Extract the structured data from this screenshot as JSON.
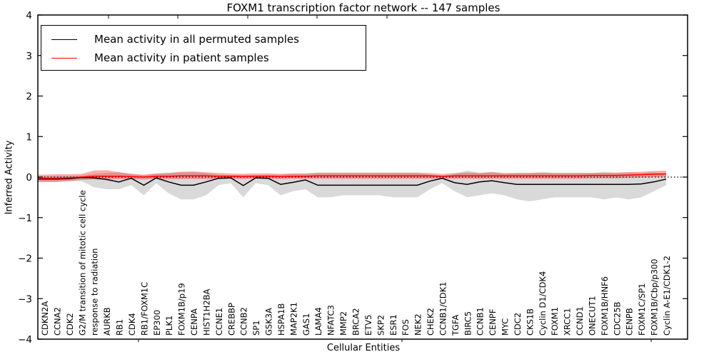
{
  "chart_data": {
    "type": "line",
    "title": "FOXM1 transcription factor network -- 147 samples",
    "xlabel": "Cellular Entities",
    "ylabel": "Inferred Activity",
    "ylim": [
      -4,
      4
    ],
    "yticks": [
      -4,
      -3,
      -2,
      -1,
      0,
      1,
      2,
      3,
      4
    ],
    "grid": "off",
    "zero_line": {
      "value": 0,
      "style": "dotted",
      "color": "#000000"
    },
    "legend": {
      "position": "upper-left",
      "entries": [
        {
          "label": "Mean activity in all permuted samples",
          "color": "#000000"
        },
        {
          "label": "Mean activity in patient samples",
          "color": "#ff0000"
        }
      ]
    },
    "categories": [
      "CDKN2A",
      "CCNA2",
      "CDK2",
      "G2/M transition of mitotic cell cycle",
      "response to radiation",
      "AURKB",
      "RB1",
      "CDK4",
      "RB1/FOXM1C",
      "EP300",
      "PLK1",
      "FOXM1B/p19",
      "CENPA",
      "HIST1H2BA",
      "CCNE1",
      "CREBBP",
      "CCNB2",
      "SP1",
      "GSK3A",
      "HSPA1B",
      "MAP2K1",
      "GAS1",
      "LAMA4",
      "NFATC3",
      "MMP2",
      "BRCA2",
      "ETV5",
      "SKP2",
      "ESR1",
      "FOS",
      "NEK2",
      "CHEK2",
      "CCNB1/CDK1",
      "TGFA",
      "BIRC5",
      "CCNB1",
      "CENPF",
      "MYC",
      "CDC2",
      "CKS1B",
      "Cyclin D1/CDK4",
      "FOXM1",
      "XRCC1",
      "CCND1",
      "ONECUT1",
      "FOXM1B/HNF6",
      "CDC25B",
      "CENPB",
      "FOXM1C/SP1",
      "FOXM1B/Cbp/p300",
      "Cyclin A-E1/CDK1-2"
    ],
    "series": [
      {
        "name": "Mean activity in all permuted samples",
        "color": "#000000",
        "values": [
          -0.05,
          -0.05,
          -0.04,
          -0.01,
          -0.02,
          -0.06,
          -0.12,
          -0.03,
          -0.2,
          -0.02,
          -0.12,
          -0.2,
          -0.2,
          -0.12,
          -0.03,
          -0.02,
          -0.21,
          -0.02,
          -0.03,
          -0.18,
          -0.13,
          -0.07,
          -0.2,
          -0.2,
          -0.2,
          -0.2,
          -0.2,
          -0.2,
          -0.2,
          -0.2,
          -0.2,
          -0.1,
          -0.03,
          -0.14,
          -0.18,
          -0.12,
          -0.09,
          -0.14,
          -0.18,
          -0.18,
          -0.18,
          -0.18,
          -0.18,
          -0.18,
          -0.18,
          -0.18,
          -0.18,
          -0.18,
          -0.17,
          -0.12,
          -0.05
        ]
      },
      {
        "name": "Mean activity in patient samples",
        "color": "#ff0000",
        "values": [
          -0.03,
          -0.03,
          -0.02,
          0.0,
          0.02,
          0.02,
          0.02,
          0.01,
          0.0,
          0.02,
          0.02,
          0.03,
          0.03,
          0.03,
          0.02,
          0.02,
          0.01,
          0.02,
          0.02,
          0.01,
          0.02,
          0.02,
          0.03,
          0.03,
          0.03,
          0.03,
          0.03,
          0.03,
          0.03,
          0.03,
          0.03,
          0.03,
          0.02,
          0.03,
          0.03,
          0.03,
          0.03,
          0.03,
          0.03,
          0.03,
          0.03,
          0.03,
          0.03,
          0.03,
          0.04,
          0.04,
          0.04,
          0.05,
          0.06,
          0.07,
          0.08
        ]
      }
    ],
    "bands": [
      {
        "name": "permuted samples range",
        "color": "#d9d9d9",
        "opacity": 1,
        "upper": [
          0.02,
          0.03,
          0.03,
          0.04,
          0.08,
          0.1,
          0.12,
          0.08,
          0.05,
          0.08,
          0.1,
          0.12,
          0.12,
          0.1,
          0.06,
          0.05,
          0.06,
          0.05,
          0.06,
          0.06,
          0.08,
          0.08,
          0.1,
          0.1,
          0.1,
          0.1,
          0.1,
          0.1,
          0.1,
          0.1,
          0.1,
          0.06,
          0.02,
          0.08,
          0.16,
          0.1,
          0.13,
          0.08,
          0.1,
          0.1,
          0.12,
          0.1,
          0.1,
          0.1,
          0.1,
          0.12,
          0.1,
          0.12,
          0.1,
          0.12,
          0.08
        ],
        "lower": [
          -0.12,
          -0.12,
          -0.1,
          -0.1,
          -0.25,
          -0.3,
          -0.3,
          -0.2,
          -0.45,
          -0.15,
          -0.4,
          -0.55,
          -0.55,
          -0.45,
          -0.2,
          -0.15,
          -0.5,
          -0.15,
          -0.2,
          -0.45,
          -0.35,
          -0.3,
          -0.5,
          -0.5,
          -0.45,
          -0.45,
          -0.45,
          -0.45,
          -0.5,
          -0.5,
          -0.5,
          -0.3,
          -0.15,
          -0.35,
          -0.5,
          -0.45,
          -0.4,
          -0.45,
          -0.55,
          -0.6,
          -0.55,
          -0.5,
          -0.5,
          -0.5,
          -0.5,
          -0.55,
          -0.5,
          -0.55,
          -0.5,
          -0.35,
          -0.2
        ]
      },
      {
        "name": "patient samples range",
        "color": "#ff0000",
        "opacity": 0.33,
        "upper": [
          0.06,
          0.07,
          0.07,
          0.08,
          0.16,
          0.17,
          0.12,
          0.08,
          0.06,
          0.09,
          0.1,
          0.13,
          0.14,
          0.12,
          0.1,
          0.09,
          0.08,
          0.09,
          0.09,
          0.08,
          0.09,
          0.09,
          0.11,
          0.11,
          0.11,
          0.11,
          0.11,
          0.11,
          0.11,
          0.11,
          0.11,
          0.1,
          0.08,
          0.1,
          0.11,
          0.1,
          0.12,
          0.1,
          0.1,
          0.1,
          0.11,
          0.1,
          0.1,
          0.1,
          0.1,
          0.11,
          0.11,
          0.12,
          0.13,
          0.15,
          0.16
        ],
        "lower": [
          -0.12,
          -0.12,
          -0.1,
          -0.07,
          -0.06,
          -0.06,
          -0.05,
          -0.05,
          -0.06,
          -0.04,
          -0.05,
          -0.05,
          -0.05,
          -0.05,
          -0.04,
          -0.04,
          -0.05,
          -0.04,
          -0.04,
          -0.05,
          -0.04,
          -0.04,
          -0.04,
          -0.04,
          -0.04,
          -0.04,
          -0.04,
          -0.04,
          -0.04,
          -0.04,
          -0.04,
          -0.04,
          -0.04,
          -0.04,
          -0.04,
          -0.04,
          -0.04,
          -0.04,
          -0.04,
          -0.04,
          -0.04,
          -0.04,
          -0.04,
          -0.04,
          -0.03,
          -0.03,
          -0.03,
          -0.02,
          -0.01,
          0.0,
          0.01
        ]
      }
    ]
  }
}
